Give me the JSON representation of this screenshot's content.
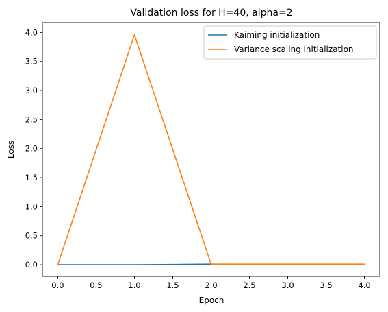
{
  "chart_data": {
    "type": "line",
    "title": "Validation loss for H=40, alpha=2",
    "xlabel": "Epoch",
    "ylabel": "Loss",
    "xlim": [
      -0.2,
      4.2
    ],
    "ylim": [
      -0.2,
      4.17
    ],
    "xticks": [
      0.0,
      0.5,
      1.0,
      1.5,
      2.0,
      2.5,
      3.0,
      3.5,
      4.0
    ],
    "xtick_labels": [
      "0.0",
      "0.5",
      "1.0",
      "1.5",
      "2.0",
      "2.5",
      "3.0",
      "3.5",
      "4.0"
    ],
    "yticks": [
      0.0,
      0.5,
      1.0,
      1.5,
      2.0,
      2.5,
      3.0,
      3.5,
      4.0
    ],
    "ytick_labels": [
      "0.0",
      "0.5",
      "1.0",
      "1.5",
      "2.0",
      "2.5",
      "3.0",
      "3.5",
      "4.0"
    ],
    "grid": false,
    "legend_position": "top-right",
    "x": [
      0,
      1,
      2,
      3,
      4
    ],
    "series": [
      {
        "name": "Kaiming initialization",
        "color": "#1f77b4",
        "values": [
          0.0,
          0.0,
          0.01,
          0.005,
          0.005
        ]
      },
      {
        "name": "Variance scaling initialization",
        "color": "#ff7f0e",
        "values": [
          0.0,
          3.96,
          0.01,
          0.01,
          0.01
        ]
      }
    ]
  }
}
